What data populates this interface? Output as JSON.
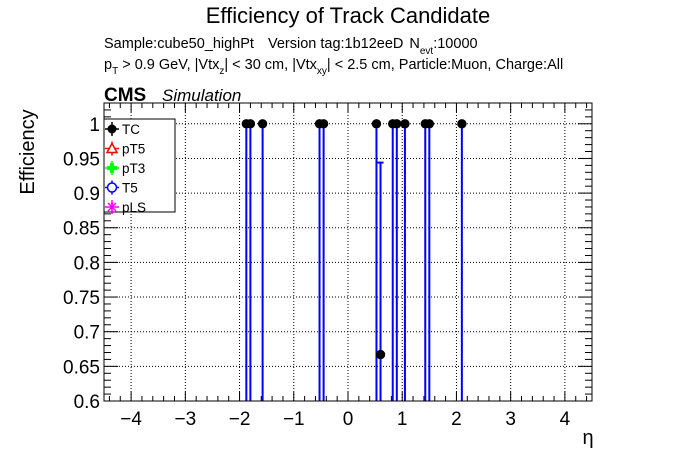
{
  "chart_data": {
    "type": "scatter",
    "title": "Efficiency of Track Candidate",
    "subtitle_line1": {
      "sample": "Sample:cube50_highPt",
      "version": "Version tag:1b12eeD",
      "nevt_prefix": "N",
      "nevt_sub": "evt",
      "nevt_value": ":10000"
    },
    "subtitle_line2": {
      "p1": "p",
      "s1": "T",
      "p2": " > 0.9 GeV, |Vtx",
      "s2": "z",
      "p3": "| < 30 cm, |Vtx",
      "s3": "xy",
      "p4": "| < 2.5 cm, Particle:Muon, Charge:All"
    },
    "cms_label": "CMS",
    "simulation_label": "Simulation",
    "xlabel": "η",
    "ylabel": "Efficiency",
    "xlim": [
      -4.5,
      4.5
    ],
    "ylim": [
      0.6,
      1.03
    ],
    "xticks": [
      {
        "v": -4,
        "label": "−4"
      },
      {
        "v": -3,
        "label": "−3"
      },
      {
        "v": -2,
        "label": "−2"
      },
      {
        "v": -1,
        "label": "−1"
      },
      {
        "v": 0,
        "label": "0"
      },
      {
        "v": 1,
        "label": "1"
      },
      {
        "v": 2,
        "label": "2"
      },
      {
        "v": 3,
        "label": "3"
      },
      {
        "v": 4,
        "label": "4"
      }
    ],
    "yticks": [
      {
        "v": 0.6,
        "label": "0.6"
      },
      {
        "v": 0.65,
        "label": "0.65"
      },
      {
        "v": 0.7,
        "label": "0.7"
      },
      {
        "v": 0.75,
        "label": "0.75"
      },
      {
        "v": 0.8,
        "label": "0.8"
      },
      {
        "v": 0.85,
        "label": "0.85"
      },
      {
        "v": 0.9,
        "label": "0.9"
      },
      {
        "v": 0.95,
        "label": "0.95"
      },
      {
        "v": 1.0,
        "label": "1"
      }
    ],
    "grid": true,
    "legend_position": "top-left",
    "legend": [
      {
        "label": "TC",
        "color": "#000000",
        "marker": "filled-circle"
      },
      {
        "label": "pT5",
        "color": "#ff0000",
        "marker": "open-triangle"
      },
      {
        "label": "pT3",
        "color": "#00ff00",
        "marker": "filled-cross"
      },
      {
        "label": "T5",
        "color": "#0000ff",
        "marker": "open-circle"
      },
      {
        "label": "pLS",
        "color": "#ff00ff",
        "marker": "star"
      }
    ],
    "series": [
      {
        "name": "TC",
        "color": "#000000",
        "errbar_color": "#0000ff",
        "points": [
          {
            "x": -1.875,
            "y": 1.0,
            "err_low": 1.0
          },
          {
            "x": -1.8,
            "y": 1.0,
            "err_low": 1.0
          },
          {
            "x": -1.575,
            "y": 1.0,
            "err_low": 1.0
          },
          {
            "x": -0.525,
            "y": 1.0,
            "err_low": 1.0
          },
          {
            "x": -0.45,
            "y": 1.0,
            "err_low": 1.0
          },
          {
            "x": 0.525,
            "y": 1.0,
            "err_low": 1.0
          },
          {
            "x": 0.6,
            "y": 0.667,
            "err_low": 0.667,
            "err_high": 0.277
          },
          {
            "x": 0.825,
            "y": 1.0,
            "err_low": 1.0
          },
          {
            "x": 0.9,
            "y": 1.0,
            "err_low": 1.0
          },
          {
            "x": 1.05,
            "y": 1.0,
            "err_low": 1.0
          },
          {
            "x": 1.425,
            "y": 1.0,
            "err_low": 1.0
          },
          {
            "x": 1.5,
            "y": 1.0,
            "err_low": 1.0
          },
          {
            "x": 2.1,
            "y": 1.0,
            "err_low": 1.0
          }
        ]
      }
    ]
  }
}
